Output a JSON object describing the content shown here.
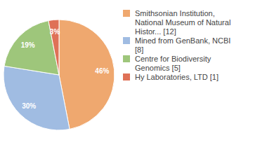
{
  "chart_data": {
    "type": "pie",
    "categories": [
      "Smithsonian Institution, National Museum of Natural Histor... [12]",
      "Mined from GenBank, NCBI [8]",
      "Centre for Biodiversity Genomics [5]",
      "Hy Laboratories, LTD [1]"
    ],
    "values": [
      46,
      30,
      19,
      3
    ],
    "value_labels": [
      "46%",
      "30%",
      "19%",
      "3%"
    ],
    "colors": [
      "#efa86f",
      "#a0bce2",
      "#9ec67b",
      "#df7157"
    ],
    "data_labels": true,
    "legend": "right"
  }
}
